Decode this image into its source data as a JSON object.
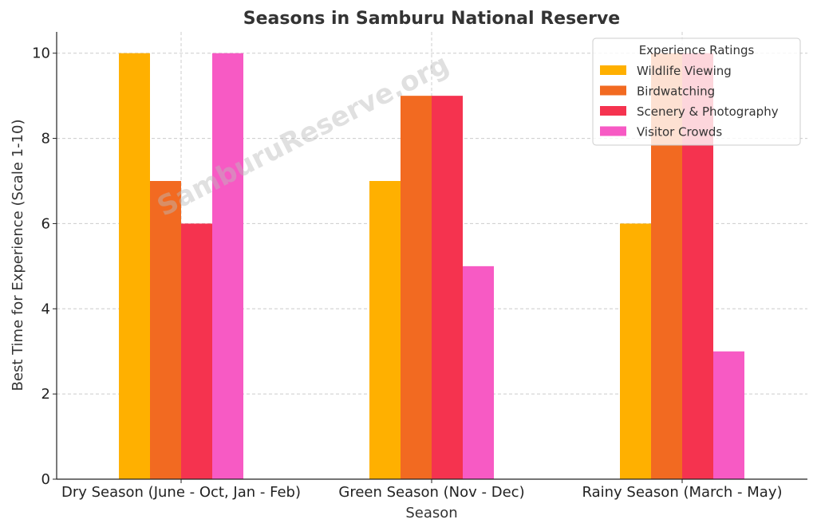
{
  "chart_data": {
    "type": "bar",
    "title": "Seasons in Samburu National Reserve",
    "xlabel": "Season",
    "ylabel": "Best Time for Experience (Scale 1-10)",
    "ylim": [
      0,
      10.5
    ],
    "yticks": [
      0,
      2,
      4,
      6,
      8,
      10
    ],
    "grid": true,
    "categories": [
      "Dry Season (June - Oct, Jan - Feb)",
      "Green Season (Nov - Dec)",
      "Rainy Season (March - May)"
    ],
    "series": [
      {
        "name": "Wildlife Viewing",
        "color": "#FFB000",
        "values": [
          10,
          7,
          6
        ]
      },
      {
        "name": "Birdwatching",
        "color": "#F26A21",
        "values": [
          7,
          9,
          10
        ]
      },
      {
        "name": "Scenery & Photography",
        "color": "#F5334F",
        "values": [
          6,
          9,
          10
        ]
      },
      {
        "name": "Visitor Crowds",
        "color": "#F75AC4",
        "values": [
          10,
          5,
          3
        ]
      }
    ],
    "legend": {
      "title": "Experience Ratings",
      "placement": "top-right"
    },
    "watermark": "SamburuReserve.org"
  }
}
